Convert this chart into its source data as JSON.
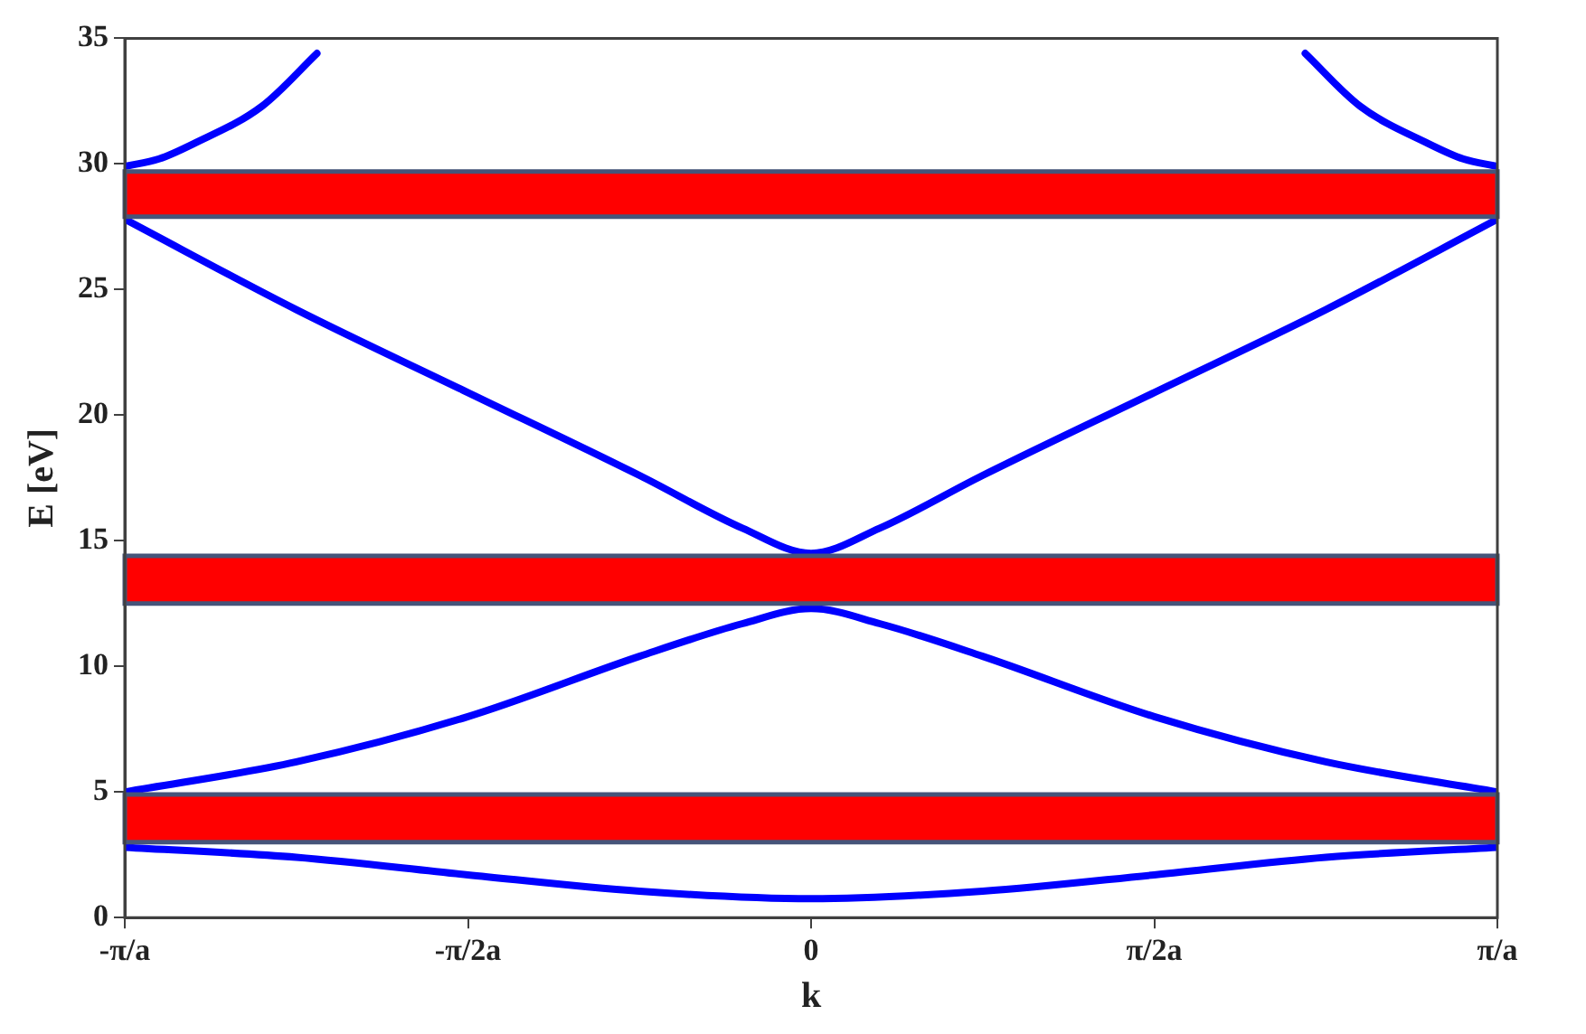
{
  "chart_data": {
    "type": "line",
    "xlabel": "k",
    "ylabel": "E [eV]",
    "xlim": [
      -3.1416,
      3.1416
    ],
    "xticks": [
      {
        "value": -3.1416,
        "label": "-π/a"
      },
      {
        "value": -1.5708,
        "label": "-π/2a"
      },
      {
        "value": 0,
        "label": "0"
      },
      {
        "value": 1.5708,
        "label": "π/2a"
      },
      {
        "value": 3.1416,
        "label": "π/a"
      }
    ],
    "ylim": [
      0,
      35
    ],
    "yticks": [
      0,
      5,
      10,
      15,
      20,
      25,
      30,
      35
    ],
    "grid": false,
    "legend": false,
    "marker": "none",
    "line_style": "solid",
    "series": [
      {
        "color": "#0000ff",
        "x": [
          -3.1416,
          -2.3562,
          -1.5708,
          -0.7854,
          0,
          0.7854,
          1.5708,
          2.3562,
          3.1416
        ],
        "values": [
          2.8,
          2.4,
          1.7,
          1.05,
          0.75,
          1.05,
          1.7,
          2.4,
          2.8
        ]
      },
      {
        "color": "#0000ff",
        "x": [
          -3.1416,
          -2.3562,
          -1.5708,
          -0.7854,
          -0.3142,
          0,
          0.3142,
          0.7854,
          1.5708,
          2.3562,
          3.1416
        ],
        "values": [
          5.0,
          6.2,
          8.0,
          10.4,
          11.7,
          12.3,
          11.7,
          10.4,
          8.0,
          6.2,
          5.0
        ]
      },
      {
        "color": "#0000ff",
        "x": [
          -3.1416,
          -2.3562,
          -1.5708,
          -0.7854,
          -0.3142,
          0,
          0.3142,
          0.7854,
          1.5708,
          2.3562,
          3.1416
        ],
        "values": [
          27.8,
          24.2,
          20.9,
          17.6,
          15.5,
          14.5,
          15.5,
          17.6,
          20.9,
          24.2,
          27.8
        ]
      },
      {
        "color": "#0000ff",
        "x": [
          -3.1416,
          -2.9845,
          -2.8274,
          -2.5133,
          -2.2619
        ],
        "values": [
          29.9,
          30.2,
          30.8,
          32.3,
          34.4
        ]
      },
      {
        "color": "#0000ff",
        "x": [
          2.2619,
          2.5133,
          2.8274,
          2.9845,
          3.1416
        ],
        "values": [
          34.4,
          32.3,
          30.8,
          30.2,
          29.9
        ]
      }
    ],
    "bands": [
      {
        "axis": "y",
        "from": 27.9,
        "to": 29.7,
        "color": "#ff0000"
      },
      {
        "axis": "y",
        "from": 12.5,
        "to": 14.4,
        "color": "#ff0000"
      },
      {
        "axis": "y",
        "from": 3.0,
        "to": 4.9,
        "color": "#ff0000"
      }
    ]
  }
}
